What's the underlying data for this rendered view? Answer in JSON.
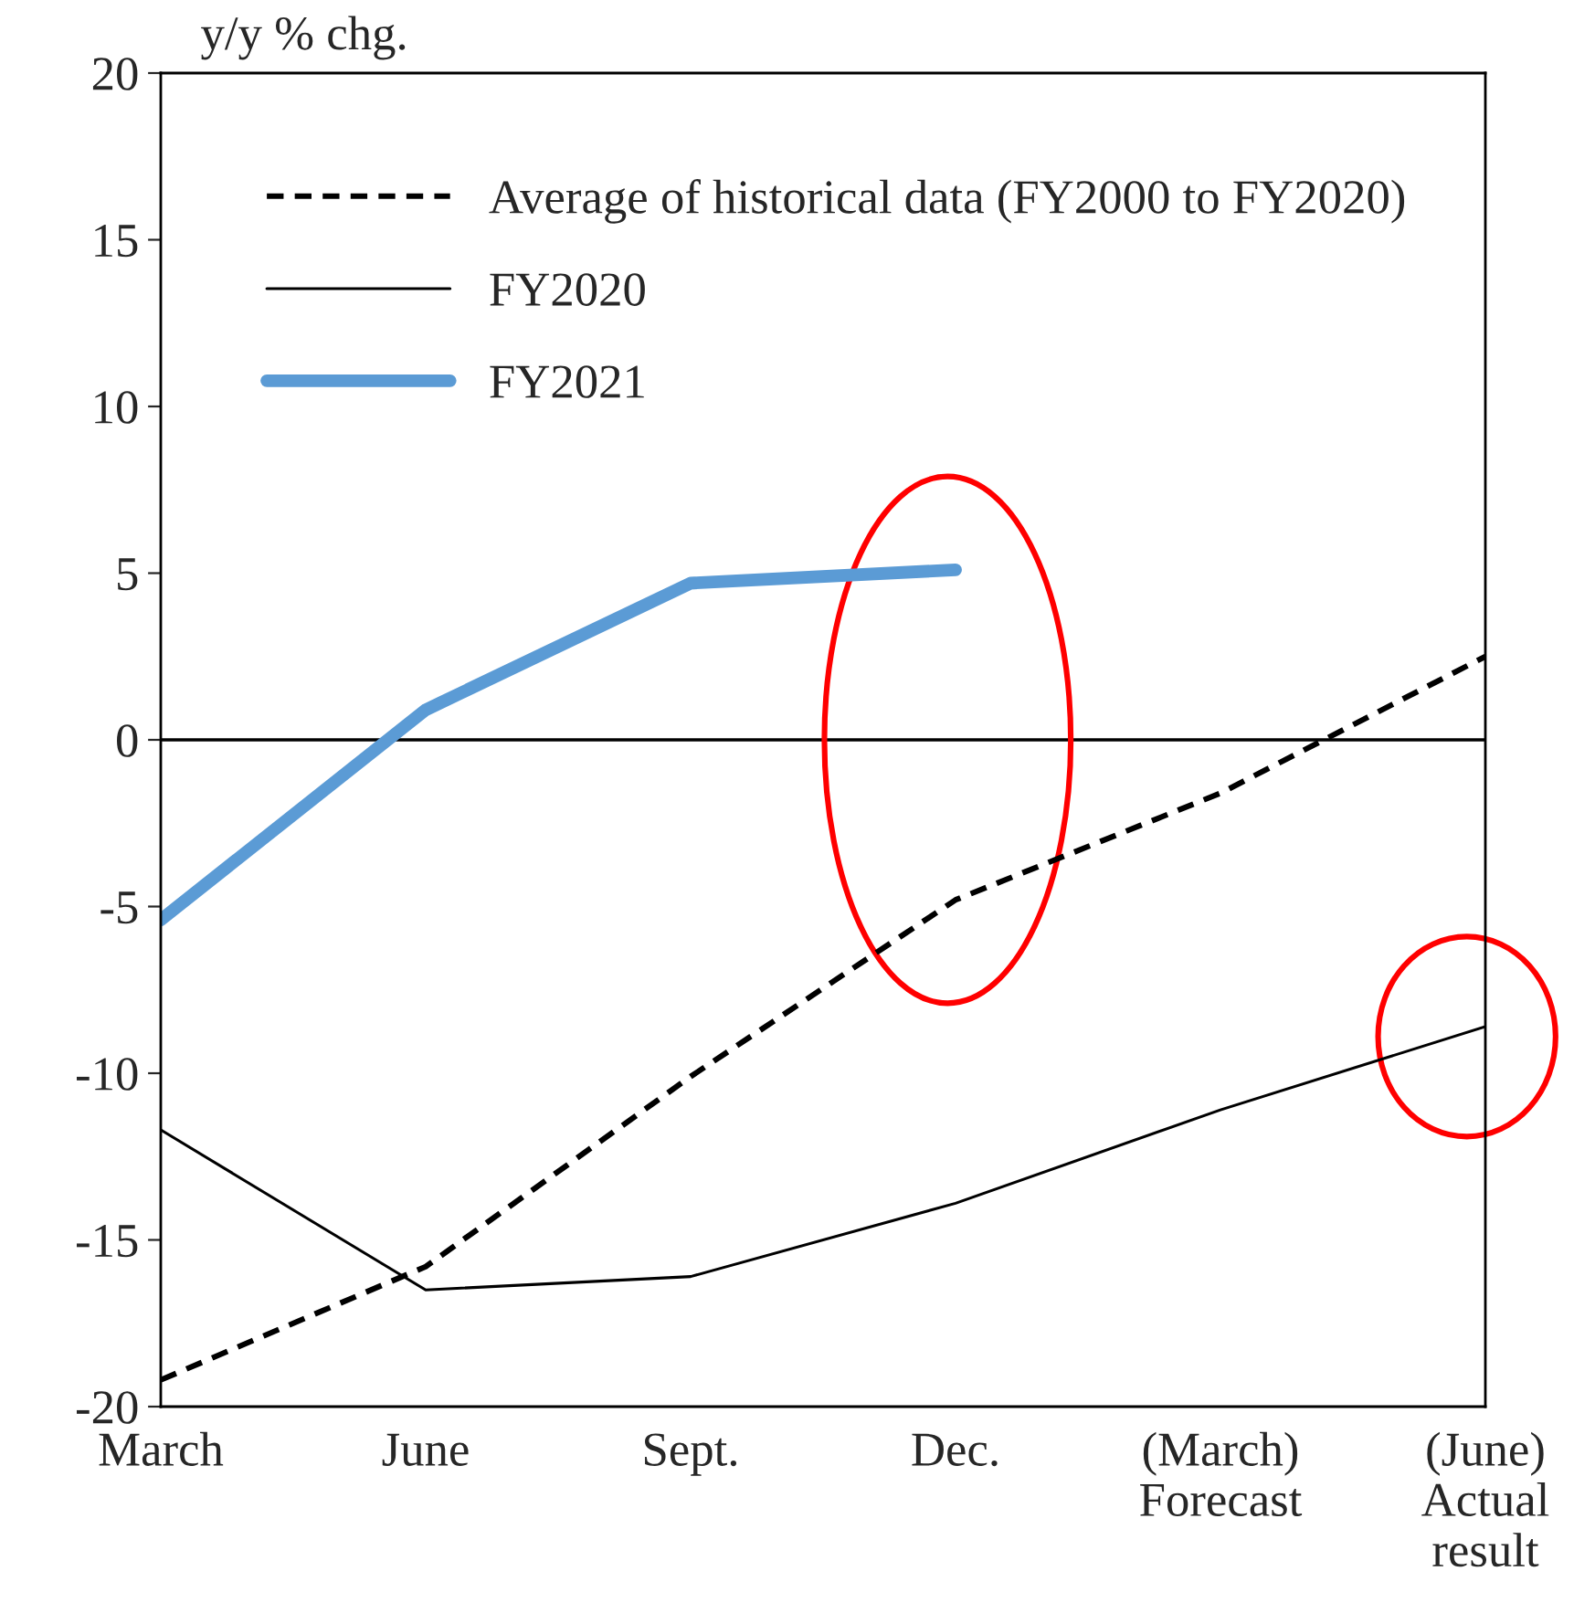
{
  "chart_data": {
    "type": "line",
    "ylabel": "y/y % chg.",
    "categories": [
      "March",
      "June",
      "Sept.",
      "Dec.",
      "(March)\nForecast",
      "(June)\nActual\nresult"
    ],
    "series": [
      {
        "name": "Average of historical data (FY2000 to FY2020)",
        "color": "#000000",
        "line_style": "dashed",
        "values": [
          -19.2,
          -15.8,
          -10.1,
          -4.8,
          -1.6,
          2.5
        ]
      },
      {
        "name": "FY2020",
        "color": "#000000",
        "line_style": "solid",
        "values": [
          -11.7,
          -16.5,
          -16.1,
          -13.9,
          -11.1,
          -8.6
        ]
      },
      {
        "name": "FY2021",
        "color": "#5b9bd5",
        "line_style": "solid",
        "values": [
          -5.4,
          0.9,
          4.7,
          5.1,
          null,
          null
        ]
      }
    ],
    "ylim": [
      -20,
      20
    ],
    "yticks": [
      -20,
      -15,
      -10,
      -5,
      0,
      5,
      10,
      15,
      20
    ],
    "ref_lines": [
      {
        "axis": "y",
        "value": 0,
        "color": "#000000"
      }
    ],
    "grid": false,
    "legend": "top left",
    "marker": "none"
  }
}
